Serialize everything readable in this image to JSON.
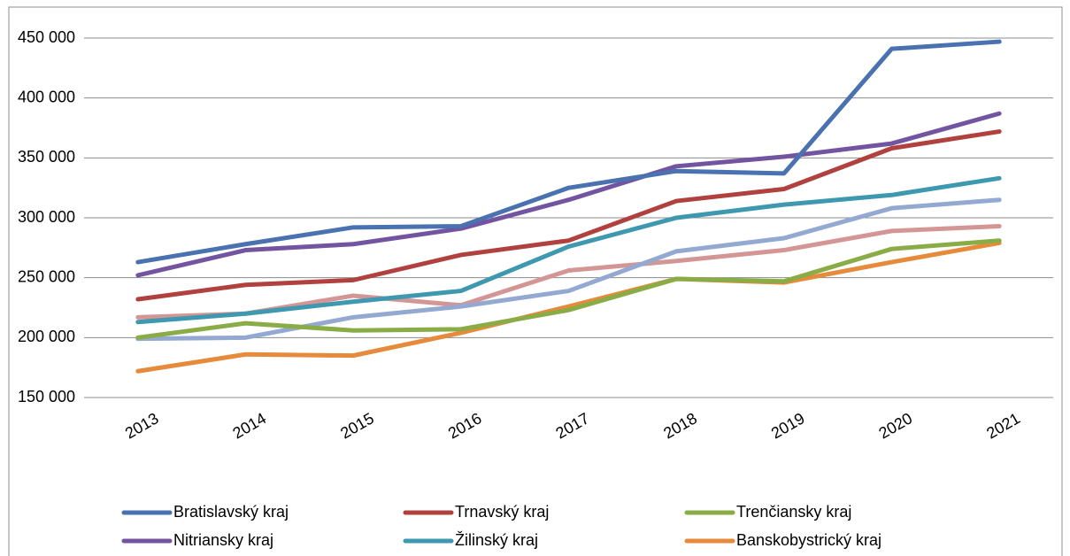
{
  "chart_data": {
    "type": "line",
    "categories": [
      "2013",
      "2014",
      "2015",
      "2016",
      "2017",
      "2018",
      "2019",
      "2020",
      "2021"
    ],
    "series": [
      {
        "name": "Bratislavský kraj",
        "color": "#4a72b0",
        "values": [
          263000,
          278000,
          292000,
          293000,
          325000,
          339000,
          337000,
          441000,
          447000
        ]
      },
      {
        "name": "Trnavský kraj",
        "color": "#b0413e",
        "values": [
          232000,
          244000,
          248000,
          269000,
          281000,
          314000,
          324000,
          358000,
          372000
        ]
      },
      {
        "name": "Trenčiansky kraj",
        "color": "#8aac46",
        "values": [
          200000,
          212000,
          206000,
          207000,
          223000,
          249000,
          247000,
          274000,
          281000
        ]
      },
      {
        "name": "Nitriansky kraj",
        "color": "#7354a0",
        "values": [
          252000,
          273000,
          278000,
          291000,
          315000,
          343000,
          351000,
          362000,
          387000
        ]
      },
      {
        "name": "Žilinský kraj",
        "color": "#3d98b0",
        "values": [
          213000,
          220000,
          230000,
          239000,
          276000,
          300000,
          311000,
          319000,
          333000
        ]
      },
      {
        "name": "Banskobystrický kraj",
        "color": "#e68a3b",
        "values": [
          172000,
          186000,
          185000,
          204000,
          226000,
          249000,
          246000,
          263000,
          279000
        ]
      },
      {
        "color": "#93a9d1",
        "values": [
          199000,
          200000,
          217000,
          226000,
          239000,
          272000,
          283000,
          308000,
          315000
        ]
      },
      {
        "color": "#d49695",
        "values": [
          217000,
          220000,
          235000,
          227000,
          256000,
          264000,
          273000,
          289000,
          293000
        ]
      }
    ],
    "ylim": [
      150000,
      450000
    ],
    "yticks": [
      {
        "value": 150000,
        "label": "150 000"
      },
      {
        "value": 200000,
        "label": "200 000"
      },
      {
        "value": 250000,
        "label": "250 000"
      },
      {
        "value": 300000,
        "label": "300 000"
      },
      {
        "value": 350000,
        "label": "350 000"
      },
      {
        "value": 400000,
        "label": "400 000"
      },
      {
        "value": 450000,
        "label": "450 000"
      }
    ],
    "grid": true
  }
}
